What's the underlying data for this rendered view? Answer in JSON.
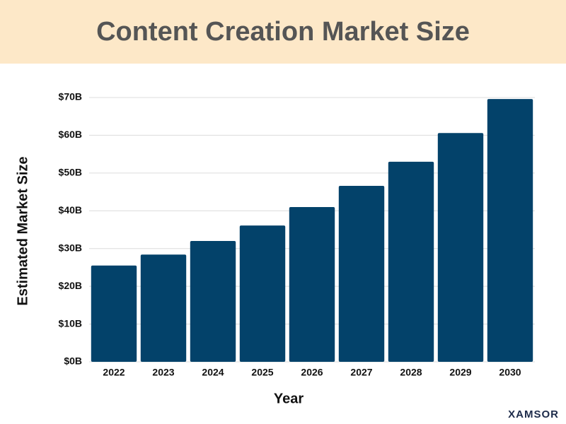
{
  "chart_data": {
    "type": "bar",
    "title": "Content Creation Market Size",
    "x_label": "Year",
    "y_label": "Estimated Market Size",
    "categories": [
      "2022",
      "2023",
      "2024",
      "2025",
      "2026",
      "2027",
      "2028",
      "2029",
      "2030"
    ],
    "values": [
      25.5,
      28.4,
      32.0,
      36.1,
      41.0,
      46.6,
      53.0,
      60.6,
      69.6
    ],
    "color": "#03426a",
    "ylim": [
      0,
      70
    ],
    "yticks": [
      {
        "value": 0,
        "label": "$0B"
      },
      {
        "value": 10,
        "label": "$10B"
      },
      {
        "value": 20,
        "label": "$20B"
      },
      {
        "value": 30,
        "label": "$30B"
      },
      {
        "value": 40,
        "label": "$40B"
      },
      {
        "value": 50,
        "label": "$50B"
      },
      {
        "value": 60,
        "label": "$60B"
      },
      {
        "value": 70,
        "label": "$70B"
      }
    ],
    "grid": true
  },
  "brand": "XAMSOR"
}
